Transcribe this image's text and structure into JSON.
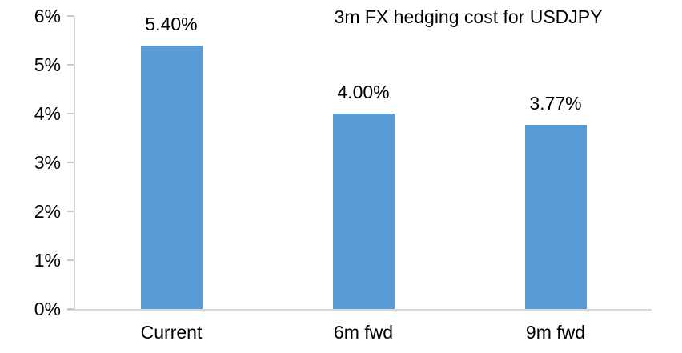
{
  "chart_data": {
    "type": "bar",
    "title": "3m FX hedging cost for USDJPY",
    "categories": [
      "Current",
      "6m fwd",
      "9m fwd"
    ],
    "values": [
      5.4,
      4.0,
      3.77
    ],
    "data_labels": [
      "5.40%",
      "4.00%",
      "3.77%"
    ],
    "xlabel": "",
    "ylabel": "",
    "ylim": [
      0,
      6
    ],
    "ytick_step": 1,
    "ytick_labels": [
      "0%",
      "1%",
      "2%",
      "3%",
      "4%",
      "5%",
      "6%"
    ],
    "grid": false,
    "legend": false,
    "bar_color": "#5b9bd5",
    "axis_line_color": "#d9d9d9",
    "tick_mark_color": "#c9c9c9",
    "text_color": "#000000",
    "background_color": "#ffffff"
  }
}
